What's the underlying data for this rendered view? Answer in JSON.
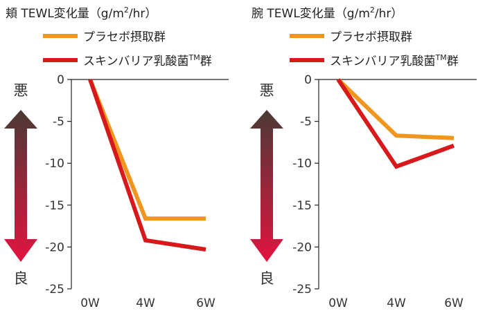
{
  "colors": {
    "placebo": "#f0951e",
    "probiotic": "#d7191c",
    "arrow_top": "#4a3a36",
    "arrow_bottom": "#e3133f",
    "axis": "#222222"
  },
  "scale": {
    "bad": "悪",
    "good": "良"
  },
  "chart_data": [
    {
      "type": "line",
      "title": "頬 TEWL変化量",
      "unit_open": "（g/m",
      "unit_sup": "2",
      "unit_close": "/hr）",
      "categories": [
        "0W",
        "4W",
        "6W"
      ],
      "ylim": [
        -25,
        0
      ],
      "yticks": [
        "0",
        "-5",
        "-10",
        "-15",
        "-20",
        "-25"
      ],
      "legend_position": "top",
      "grid": false,
      "series": [
        {
          "name": "プラセボ摂取群",
          "values": [
            0,
            -16.6,
            -16.6
          ]
        },
        {
          "name": "スキンバリア乳酸菌",
          "name_sup": "TM",
          "name_suffix": "群",
          "values": [
            0,
            -19.2,
            -20.3
          ]
        }
      ]
    },
    {
      "type": "line",
      "title": "腕 TEWL変化量",
      "unit_open": "（g/m",
      "unit_sup": "2",
      "unit_close": "/hr）",
      "categories": [
        "0W",
        "4W",
        "6W"
      ],
      "ylim": [
        -25,
        0
      ],
      "yticks": [
        "0",
        "-5",
        "-10",
        "-15",
        "-20",
        "-25"
      ],
      "legend_position": "top",
      "grid": false,
      "series": [
        {
          "name": "プラセボ摂取群",
          "values": [
            0,
            -6.7,
            -7.0
          ]
        },
        {
          "name": "スキンバリア乳酸菌",
          "name_sup": "TM",
          "name_suffix": "群",
          "values": [
            0,
            -10.4,
            -7.9
          ]
        }
      ]
    }
  ]
}
